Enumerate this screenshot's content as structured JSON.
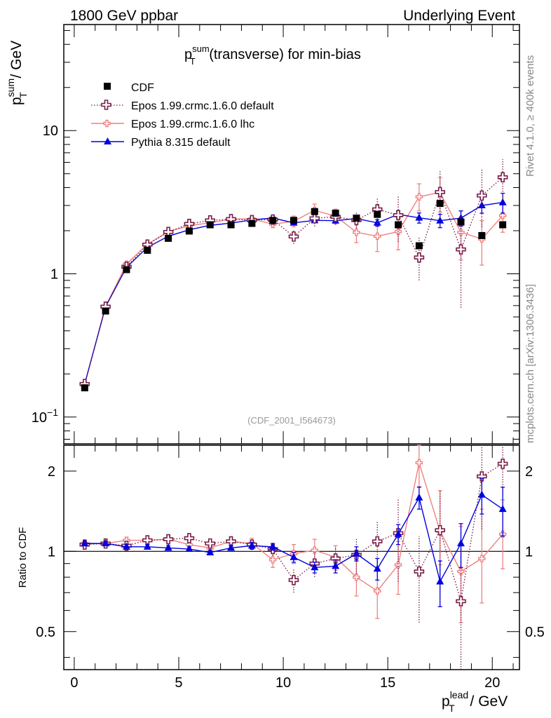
{
  "header": {
    "left": "1800 GeV ppbar",
    "right": "Underlying Event"
  },
  "side_labels": {
    "rivet": "Rivet 4.1.0, ≥ 400k events",
    "mcplots": "mcplots.cern.ch [arXiv:1306.3436]"
  },
  "chart_data": [
    {
      "type": "scatter",
      "title": "p_T^sum (transverse) for min-bias",
      "title_parts": {
        "p": "p",
        "sup": "sum",
        "sub": "T",
        "rest": " (transverse) for min-bias"
      },
      "ylabel_parts": {
        "p": "p",
        "sup": "sum",
        "sub": "T",
        "rest": " / GeV"
      },
      "yscale": "log",
      "ylim": [
        0.065,
        55
      ],
      "xlim": [
        -0.5,
        21.3
      ],
      "yticks": [
        {
          "v": 0.1,
          "base": "10",
          "exp": "−1"
        },
        {
          "v": 1,
          "label": "1"
        },
        {
          "v": 10,
          "label": "10"
        }
      ],
      "reference": "(CDF_2001_I564673)",
      "legend_position": "top-left",
      "x": [
        0.5,
        1.5,
        2.5,
        3.5,
        4.5,
        5.5,
        6.5,
        7.5,
        8.5,
        9.5,
        10.5,
        11.5,
        12.5,
        13.5,
        14.5,
        15.5,
        16.5,
        17.5,
        18.5,
        19.5,
        20.5
      ],
      "series": [
        {
          "name": "CDF",
          "color": "#000000",
          "marker": "square",
          "values": [
            0.16,
            0.55,
            1.07,
            1.46,
            1.77,
            1.99,
            2.2,
            2.2,
            2.25,
            2.36,
            2.36,
            2.72,
            2.65,
            2.45,
            2.6,
            2.2,
            1.57,
            3.1,
            2.3,
            1.85,
            2.2
          ]
        },
        {
          "name": "Epos 1.99.crmc.1.6.0 default",
          "color": "#7a1e48",
          "marker": "open-cross",
          "line": "dotted",
          "values": [
            0.17,
            0.59,
            1.12,
            1.6,
            1.96,
            2.23,
            2.36,
            2.41,
            2.37,
            2.39,
            1.82,
            2.44,
            2.5,
            2.37,
            2.82,
            2.57,
            1.3,
            3.72,
            1.48,
            3.52,
            4.72
          ],
          "err_lo": [
            0.005,
            0.01,
            0.02,
            0.03,
            0.04,
            0.05,
            0.06,
            0.07,
            0.08,
            0.09,
            0.2,
            0.3,
            0.3,
            0.3,
            0.6,
            0.9,
            0.4,
            1.3,
            0.9,
            1.4,
            1.4
          ],
          "err_hi": [
            0.005,
            0.01,
            0.02,
            0.03,
            0.04,
            0.05,
            0.06,
            0.07,
            0.08,
            0.09,
            0.2,
            0.3,
            0.3,
            0.3,
            0.6,
            0.9,
            0.5,
            1.5,
            1.1,
            1.9,
            1.6
          ]
        },
        {
          "name": "Epos 1.99.crmc.1.6.0 lhc",
          "color": "#f08080",
          "marker": "small-cross",
          "line": "solid",
          "values": [
            0.17,
            0.59,
            1.17,
            1.61,
            1.97,
            2.17,
            2.27,
            2.41,
            2.42,
            2.22,
            2.33,
            2.77,
            2.53,
            1.95,
            1.83,
            1.97,
            3.45,
            3.7,
            1.95,
            1.75,
            2.55
          ],
          "err_lo": [
            0.005,
            0.01,
            0.02,
            0.03,
            0.04,
            0.05,
            0.06,
            0.07,
            0.08,
            0.12,
            0.2,
            0.3,
            0.3,
            0.3,
            0.4,
            0.5,
            0.7,
            1.0,
            0.7,
            0.6,
            0.6
          ],
          "err_hi": [
            0.005,
            0.01,
            0.02,
            0.03,
            0.04,
            0.05,
            0.06,
            0.07,
            0.08,
            0.12,
            0.2,
            0.3,
            0.3,
            0.3,
            0.4,
            0.5,
            0.8,
            1.0,
            0.8,
            0.6,
            0.6
          ]
        },
        {
          "name": "Pythia 8.315 default",
          "color": "#0000e0",
          "marker": "triangle",
          "line": "solid",
          "values": [
            0.17,
            0.59,
            1.11,
            1.53,
            1.83,
            2.03,
            2.18,
            2.26,
            2.38,
            2.45,
            2.27,
            2.36,
            2.35,
            2.43,
            2.27,
            2.6,
            2.46,
            2.35,
            2.45,
            3.0,
            3.15
          ],
          "err_lo": [
            0.003,
            0.005,
            0.01,
            0.01,
            0.02,
            0.02,
            0.03,
            0.03,
            0.04,
            0.04,
            0.05,
            0.06,
            0.08,
            0.1,
            0.12,
            0.15,
            0.2,
            0.25,
            0.3,
            0.35,
            0.5
          ],
          "err_hi": [
            0.003,
            0.005,
            0.01,
            0.01,
            0.02,
            0.02,
            0.03,
            0.03,
            0.04,
            0.04,
            0.05,
            0.06,
            0.08,
            0.1,
            0.12,
            0.15,
            0.2,
            0.25,
            0.3,
            0.35,
            0.5
          ]
        }
      ]
    },
    {
      "type": "scatter",
      "title": "Ratio to CDF",
      "ylabel": "Ratio to CDF",
      "yscale": "log",
      "ylim": [
        0.36,
        2.5
      ],
      "yticks": [
        {
          "v": 0.5,
          "label": "0.5"
        },
        {
          "v": 1,
          "label": "1"
        },
        {
          "v": 2,
          "label": "2"
        }
      ],
      "xlabel_parts": {
        "p": "p",
        "sup": "lead",
        "sub": "T",
        "rest": " / GeV"
      },
      "xlim": [
        -0.5,
        21.3
      ],
      "xticks": [
        0,
        5,
        10,
        15,
        20
      ],
      "x": [
        0.5,
        1.5,
        2.5,
        3.5,
        4.5,
        5.5,
        6.5,
        7.5,
        8.5,
        9.5,
        10.5,
        11.5,
        12.5,
        13.5,
        14.5,
        15.5,
        16.5,
        17.5,
        18.5,
        19.5,
        20.5
      ],
      "series": [
        {
          "name": "Epos 1.99.crmc.1.6.0 default",
          "color": "#7a1e48",
          "marker": "open-cross",
          "line": "dotted",
          "values": [
            1.06,
            1.07,
            1.05,
            1.1,
            1.11,
            1.12,
            1.07,
            1.09,
            1.06,
            1.02,
            0.78,
            0.9,
            0.94,
            0.97,
            1.09,
            1.17,
            0.84,
            1.2,
            0.65,
            1.91,
            2.13
          ],
          "err_lo": [
            0.02,
            0.02,
            0.03,
            0.03,
            0.03,
            0.03,
            0.04,
            0.04,
            0.05,
            0.06,
            0.08,
            0.1,
            0.1,
            0.15,
            0.2,
            0.4,
            0.3,
            0.5,
            0.4,
            0.7,
            0.5
          ],
          "err_hi": [
            0.02,
            0.02,
            0.03,
            0.03,
            0.03,
            0.03,
            0.04,
            0.04,
            0.05,
            0.06,
            0.08,
            0.1,
            0.1,
            0.15,
            0.2,
            0.4,
            0.3,
            0.5,
            0.4,
            0.8,
            0.6
          ]
        },
        {
          "name": "Epos 1.99.crmc.1.6.0 lhc",
          "color": "#f08080",
          "marker": "small-cross",
          "line": "solid",
          "values": [
            1.07,
            1.07,
            1.1,
            1.1,
            1.11,
            1.06,
            1.03,
            1.09,
            1.07,
            0.93,
            0.98,
            1.01,
            0.95,
            0.8,
            0.71,
            0.89,
            2.15,
            1.19,
            0.84,
            0.94,
            1.16
          ],
          "err_lo": [
            0.02,
            0.02,
            0.03,
            0.03,
            0.03,
            0.03,
            0.04,
            0.04,
            0.05,
            0.06,
            0.08,
            0.1,
            0.1,
            0.12,
            0.15,
            0.2,
            0.4,
            0.3,
            0.3,
            0.3,
            0.3
          ],
          "err_hi": [
            0.02,
            0.02,
            0.03,
            0.03,
            0.03,
            0.03,
            0.04,
            0.04,
            0.05,
            0.06,
            0.08,
            0.1,
            0.1,
            0.12,
            0.15,
            0.2,
            0.4,
            0.5,
            0.4,
            0.5,
            0.4
          ]
        },
        {
          "name": "Pythia 8.315 default",
          "color": "#0000e0",
          "marker": "triangle",
          "line": "solid",
          "values": [
            1.07,
            1.07,
            1.04,
            1.04,
            1.03,
            1.02,
            0.99,
            1.03,
            1.05,
            1.04,
            0.95,
            0.87,
            0.88,
            0.98,
            0.86,
            1.16,
            1.59,
            0.77,
            1.07,
            1.63,
            1.44
          ],
          "err_lo": [
            0.02,
            0.02,
            0.02,
            0.02,
            0.02,
            0.02,
            0.02,
            0.02,
            0.03,
            0.03,
            0.04,
            0.04,
            0.05,
            0.06,
            0.08,
            0.1,
            0.15,
            0.15,
            0.2,
            0.25,
            0.3
          ],
          "err_hi": [
            0.02,
            0.02,
            0.02,
            0.02,
            0.02,
            0.02,
            0.02,
            0.02,
            0.03,
            0.03,
            0.04,
            0.04,
            0.05,
            0.06,
            0.08,
            0.1,
            0.15,
            0.15,
            0.2,
            0.25,
            0.3
          ]
        }
      ]
    }
  ]
}
